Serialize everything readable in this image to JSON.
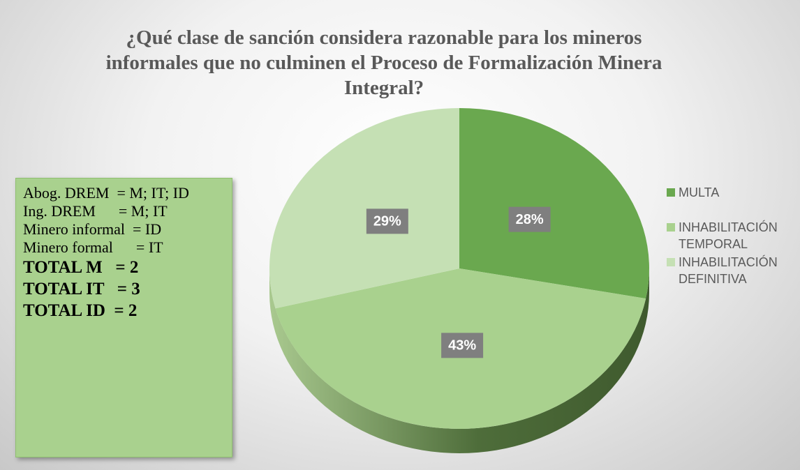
{
  "chart_data": {
    "type": "pie",
    "title": "¿Qué clase de sanción considera razonable para los mineros informales que no culminen el Proceso de Formalización Minera Integral?",
    "categories": [
      "MULTA",
      "INHABILITACIÓN TEMPORAL",
      "INHABILITACIÓN DEFINITIVA"
    ],
    "values": [
      28,
      43,
      29
    ],
    "value_labels": [
      "28%",
      "43%",
      "29%"
    ],
    "colors": [
      "#6aa84f",
      "#a9d18e",
      "#c5e0b4"
    ],
    "annotations": [
      "Abog. DREM  = M; IT; ID",
      "Ing. DREM      = M; IT",
      "Minero informal  = ID",
      "Minero formal      = IT",
      "TOTAL M   = 2",
      "TOTAL IT   = 3",
      "TOTAL ID  = 2"
    ]
  }
}
